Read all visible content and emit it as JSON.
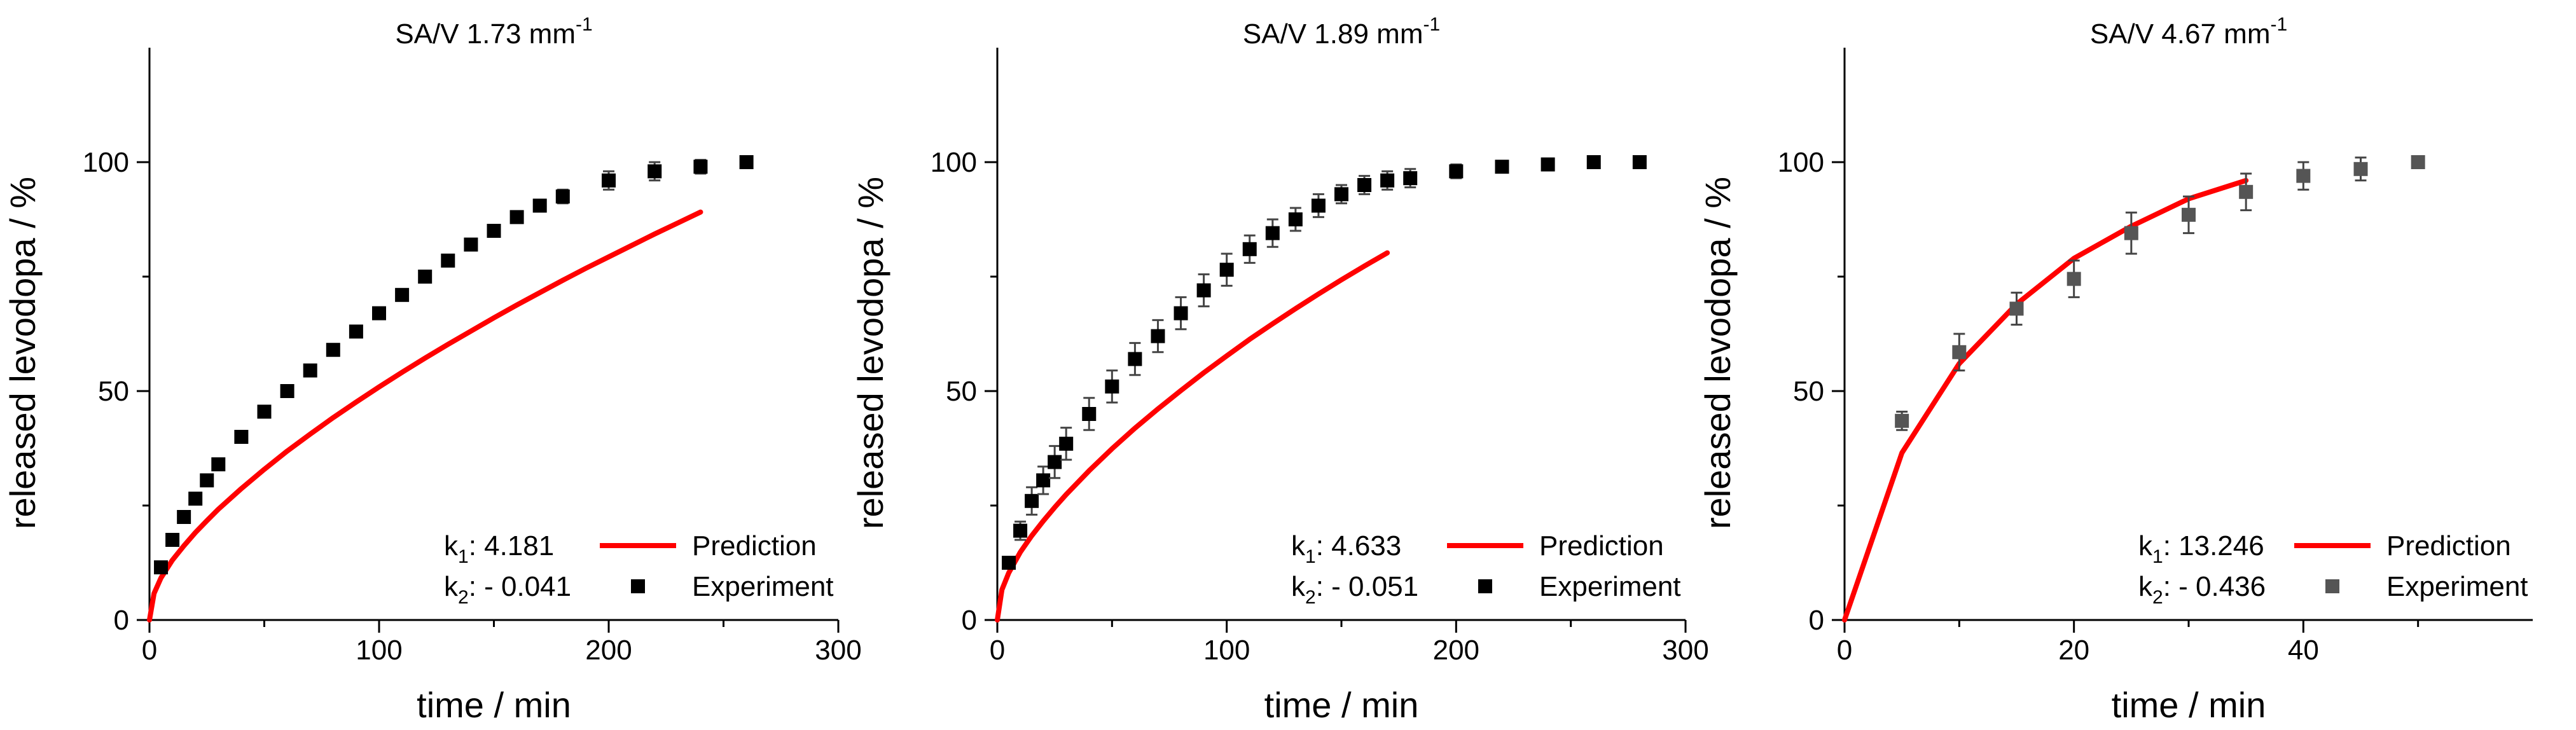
{
  "chart_data": [
    {
      "type": "scatter",
      "title": "SA/V 1.73 mm",
      "title_sup": "-1",
      "xlabel": "time / min",
      "ylabel": "released levodopa / %",
      "xlim": [
        0,
        300
      ],
      "ylim": [
        0,
        125
      ],
      "xticks": [
        0,
        100,
        200,
        300
      ],
      "yticks": [
        0,
        50,
        100
      ],
      "grid": false,
      "legend_position": "bottom-right",
      "annotations": [
        {
          "base": "k",
          "sub": "1",
          "text": ": 4.181"
        },
        {
          "base": "k",
          "sub": "2",
          "text": ": - 0.041"
        }
      ],
      "series": [
        {
          "name": "Prediction",
          "kind": "line",
          "color": "#ff0000",
          "x": [
            0,
            2,
            5,
            10,
            15,
            20,
            25,
            30,
            40,
            50,
            60,
            70,
            80,
            90,
            100,
            110,
            120,
            130,
            140,
            150,
            160,
            170,
            180,
            190,
            200,
            210,
            220,
            230,
            240
          ],
          "y": [
            0,
            5.8,
            9.2,
            13.1,
            16.2,
            19.1,
            21.7,
            24.2,
            28.7,
            32.9,
            36.9,
            40.6,
            44.2,
            47.6,
            50.9,
            54.1,
            57.2,
            60.2,
            63.1,
            66.0,
            68.8,
            71.5,
            74.2,
            76.8,
            79.3,
            81.8,
            84.3,
            86.7,
            89.1
          ]
        },
        {
          "name": "Experiment",
          "kind": "scatter",
          "color": "#000000",
          "x": [
            5,
            10,
            15,
            20,
            25,
            30,
            40,
            50,
            60,
            70,
            80,
            90,
            100,
            110,
            120,
            130,
            140,
            150,
            160,
            170,
            180,
            200,
            220,
            240,
            260
          ],
          "y": [
            11.5,
            17.5,
            22.5,
            26.5,
            30.5,
            34,
            40,
            45.5,
            50,
            54.5,
            59,
            63,
            67,
            71,
            75,
            78.5,
            82,
            85,
            88,
            90.5,
            92.5,
            96,
            98,
            99,
            100
          ],
          "err": [
            0.5,
            0.5,
            0.5,
            0.5,
            0.5,
            0.5,
            0.5,
            0.5,
            0.5,
            0.5,
            0.5,
            0.5,
            0.5,
            0.5,
            0.5,
            0.5,
            0.5,
            0.5,
            0.5,
            0.5,
            1.5,
            2,
            2,
            1.5,
            0.5
          ]
        }
      ]
    },
    {
      "type": "scatter",
      "title": "SA/V 1.89 mm",
      "title_sup": "-1",
      "xlabel": "time / min",
      "ylabel": "released levodopa / %",
      "xlim": [
        0,
        300
      ],
      "ylim": [
        0,
        125
      ],
      "xticks": [
        0,
        100,
        200,
        300
      ],
      "yticks": [
        0,
        50,
        100
      ],
      "grid": false,
      "legend_position": "bottom-right",
      "annotations": [
        {
          "base": "k",
          "sub": "1",
          "text": ": 4.633"
        },
        {
          "base": "k",
          "sub": "2",
          "text": ": - 0.051"
        }
      ],
      "series": [
        {
          "name": "Prediction",
          "kind": "line",
          "color": "#ff0000",
          "x": [
            0,
            2,
            5,
            10,
            15,
            20,
            25,
            30,
            40,
            50,
            60,
            70,
            80,
            90,
            100,
            110,
            120,
            130,
            140,
            150,
            160,
            170
          ],
          "y": [
            0,
            6.6,
            10.3,
            14.8,
            18.4,
            21.6,
            24.6,
            27.4,
            32.6,
            37.4,
            41.9,
            46.1,
            50.1,
            54.0,
            57.7,
            61.3,
            64.7,
            68.0,
            71.2,
            74.3,
            77.3,
            80.2
          ]
        },
        {
          "name": "Experiment",
          "kind": "scatter",
          "color": "#000000",
          "x": [
            5,
            10,
            15,
            20,
            25,
            30,
            40,
            50,
            60,
            70,
            80,
            90,
            100,
            110,
            120,
            130,
            140,
            150,
            160,
            170,
            180,
            200,
            220,
            240,
            260,
            280
          ],
          "y": [
            12.5,
            19.5,
            26,
            30.5,
            34.5,
            38.5,
            45,
            51,
            57,
            62,
            67,
            72,
            76.5,
            81,
            84.5,
            87.5,
            90.5,
            93,
            95,
            96,
            96.5,
            98,
            99,
            99.5,
            100,
            100
          ],
          "err": [
            1,
            2,
            3,
            3,
            3.5,
            3.5,
            3.5,
            3.5,
            3.5,
            3.5,
            3.5,
            3.5,
            3.5,
            3,
            3,
            2.5,
            2.5,
            2,
            2,
            2,
            2,
            1.5,
            1,
            1,
            0.5,
            0.5
          ]
        }
      ]
    },
    {
      "type": "scatter",
      "title": "SA/V 4.67 mm",
      "title_sup": "-1",
      "xlabel": "time / min",
      "ylabel": "released levodopa / %",
      "xlim": [
        0,
        60
      ],
      "ylim": [
        0,
        125
      ],
      "xticks": [
        0,
        20,
        40
      ],
      "yticks": [
        0,
        50,
        100
      ],
      "grid": false,
      "legend_position": "bottom-right",
      "annotations": [
        {
          "base": "k",
          "sub": "1",
          "text": ": 13.246"
        },
        {
          "base": "k",
          "sub": "2",
          "text": ": - 0.436"
        }
      ],
      "series": [
        {
          "name": "Prediction",
          "kind": "line",
          "color": "#ff0000",
          "x": [
            0,
            5,
            10,
            15,
            20,
            25,
            30,
            35
          ],
          "y": [
            0,
            36.5,
            56,
            69,
            79,
            86,
            92,
            96
          ]
        },
        {
          "name": "Experiment",
          "kind": "scatter",
          "color": "#555555",
          "x": [
            5,
            10,
            15,
            20,
            25,
            30,
            35,
            40,
            45,
            50
          ],
          "y": [
            43.5,
            58.5,
            68,
            74.5,
            84.5,
            88.5,
            93.5,
            97,
            98.5,
            100
          ],
          "err": [
            2,
            4,
            3.5,
            4,
            4.5,
            4,
            4,
            3,
            2.5,
            1
          ]
        }
      ]
    }
  ]
}
